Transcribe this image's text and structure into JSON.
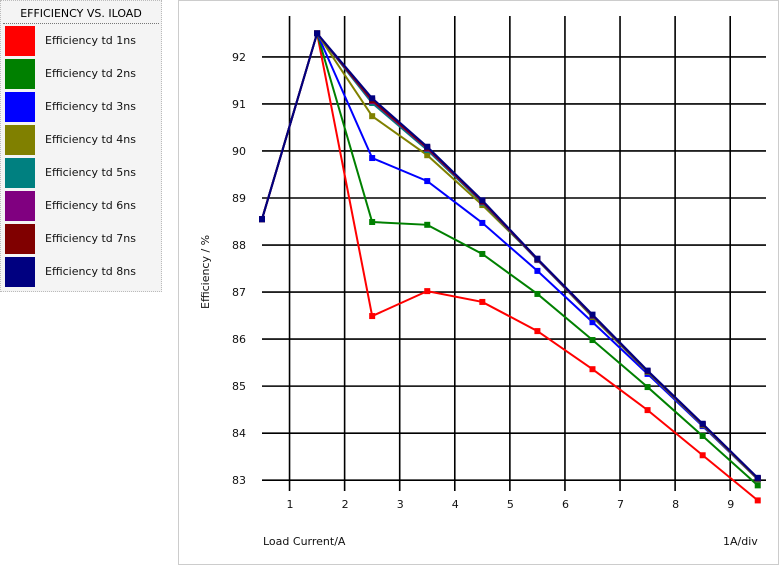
{
  "chart_data": {
    "type": "line",
    "title": "EFFICIENCY VS. ILOAD",
    "xlabel": "Load Current/A",
    "xscale_label": "1A/div",
    "ylabel": "Efficiency / %",
    "xlim": [
      0.5,
      9.65
    ],
    "ylim": [
      82.77,
      92.87
    ],
    "xticks": [
      1,
      2,
      3,
      4,
      5,
      6,
      7,
      8,
      9
    ],
    "yticks": [
      83,
      84,
      85,
      86,
      87,
      88,
      89,
      90,
      91,
      92
    ],
    "grid": true,
    "legend_position": "left",
    "x": [
      0.5,
      1.5,
      2.5,
      3.5,
      4.5,
      5.5,
      6.5,
      7.5,
      8.5,
      9.5
    ],
    "series": [
      {
        "name": "Efficiency td 1ns",
        "color": "#ff0000",
        "values": [
          88.55,
          92.5,
          86.49,
          87.02,
          86.79,
          86.17,
          85.36,
          84.49,
          83.53,
          82.57
        ]
      },
      {
        "name": "Efficiency td 2ns",
        "color": "#008000",
        "values": [
          88.55,
          92.5,
          88.49,
          88.43,
          87.81,
          86.96,
          85.98,
          84.98,
          83.94,
          82.89
        ]
      },
      {
        "name": "Efficiency td 3ns",
        "color": "#0000ff",
        "values": [
          88.55,
          92.5,
          89.85,
          89.36,
          88.47,
          87.45,
          86.36,
          85.26,
          84.15,
          83.02
        ]
      },
      {
        "name": "Efficiency td 4ns",
        "color": "#808000",
        "values": [
          88.55,
          92.5,
          90.74,
          89.91,
          88.85,
          87.7,
          86.47,
          85.3,
          84.17,
          83.02
        ]
      },
      {
        "name": "Efficiency td 5ns",
        "color": "#008080",
        "values": [
          88.55,
          92.5,
          91.02,
          90.02,
          88.9,
          87.68,
          86.49,
          85.31,
          84.18,
          83.03
        ]
      },
      {
        "name": "Efficiency td 6ns",
        "color": "#800080",
        "values": [
          88.55,
          92.5,
          91.06,
          90.05,
          88.92,
          87.69,
          86.5,
          85.32,
          84.19,
          83.04
        ]
      },
      {
        "name": "Efficiency td 7ns",
        "color": "#800000",
        "values": [
          88.55,
          92.5,
          91.08,
          90.07,
          88.93,
          87.7,
          86.51,
          85.32,
          84.19,
          83.04
        ]
      },
      {
        "name": "Efficiency td 8ns",
        "color": "#000080",
        "values": [
          88.55,
          92.5,
          91.12,
          90.09,
          88.95,
          87.71,
          86.52,
          85.33,
          84.2,
          83.05
        ]
      }
    ]
  }
}
